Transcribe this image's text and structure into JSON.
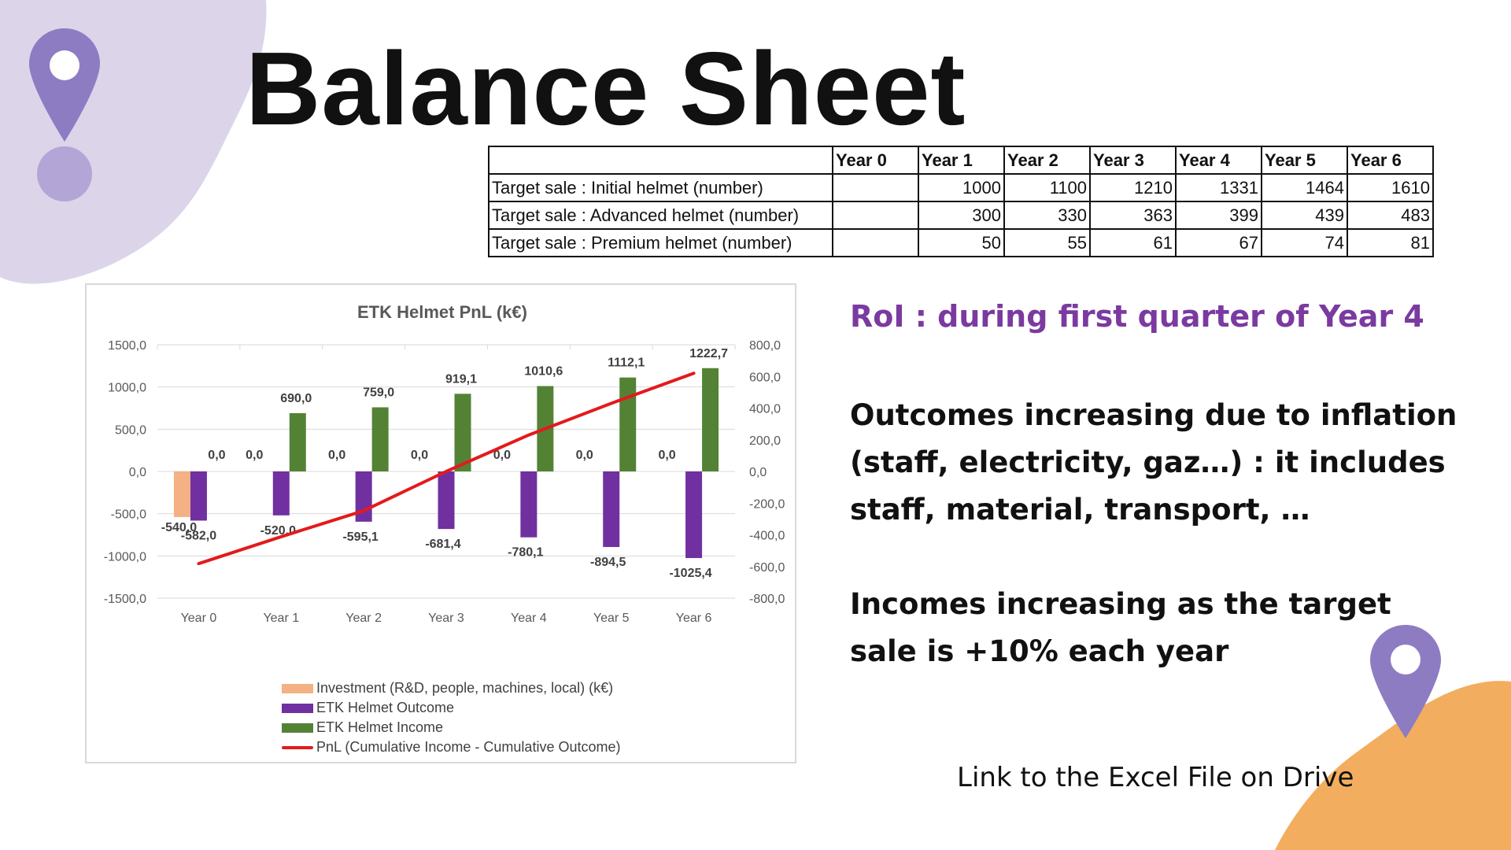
{
  "slide": {
    "title": "Balance Sheet",
    "roi_text": "RoI : during first quarter of Year 4",
    "paragraph_1": "Outcomes increasing due to inflation (staff, electricity, gaz…) : it includes staff, material, transport, …",
    "paragraph_2": "Incomes increasing as the target sale is +10% each year",
    "link_text": "Link to the Excel File on Drive",
    "icons": [
      "map-pin-icon",
      "map-pin-icon"
    ],
    "colors": {
      "accent_purple": "#7b3aa0",
      "blob_lavender": "#dcd5ea",
      "pin_purple": "#8e7cc3",
      "blob_orange": "#f2ae5e"
    }
  },
  "table": {
    "columns": [
      "",
      "Year 0",
      "Year 1",
      "Year 2",
      "Year 3",
      "Year 4",
      "Year 5",
      "Year 6"
    ],
    "rows": [
      {
        "label": "Target sale : Initial helmet (number)",
        "values": [
          "",
          "1000",
          "1100",
          "1210",
          "1331",
          "1464",
          "1610"
        ]
      },
      {
        "label": "Target sale : Advanced helmet (number)",
        "values": [
          "",
          "300",
          "330",
          "363",
          "399",
          "439",
          "483"
        ]
      },
      {
        "label": "Target sale : Premium helmet (number)",
        "values": [
          "",
          "50",
          "55",
          "61",
          "67",
          "74",
          "81"
        ]
      }
    ]
  },
  "chart_data": {
    "type": "bar",
    "title": "ETK Helmet PnL (k€)",
    "categories": [
      "Year 0",
      "Year 1",
      "Year 2",
      "Year 3",
      "Year 4",
      "Year 5",
      "Year 6"
    ],
    "ylim": [
      -1500,
      1500
    ],
    "y_ticks": [
      "1500,0",
      "1000,0",
      "500,0",
      "0,0",
      "-500,0",
      "-1000,0",
      "-1500,0"
    ],
    "y2lim": [
      -800,
      800
    ],
    "y2_ticks": [
      "800,0",
      "600,0",
      "400,0",
      "200,0",
      "0,0",
      "-200,0",
      "-400,0",
      "-600,0",
      "-800,0"
    ],
    "grid": true,
    "legend_position": "bottom",
    "series": [
      {
        "name": "Investment (R&D, people, machines, local)  (k€)",
        "type": "bar",
        "color": "#f4b183",
        "values": [
          -540,
          0,
          0,
          0,
          0,
          0,
          0
        ],
        "labels": [
          "-540,0",
          "0,0",
          "0,0",
          "0,0",
          "0,0",
          "0,0",
          "0,0"
        ]
      },
      {
        "name": "ETK Helmet Outcome",
        "type": "bar",
        "color": "#7030a0",
        "values": [
          -582,
          -520,
          -595.1,
          -681.4,
          -780.1,
          -894.5,
          -1025.4
        ],
        "labels": [
          "-582,0",
          "-520,0",
          "-595,1",
          "-681,4",
          "-780,1",
          "-894,5",
          "-1025,4"
        ]
      },
      {
        "name": "ETK Helmet Income",
        "type": "bar",
        "color": "#548235",
        "values": [
          0,
          690,
          759,
          919.1,
          1010.6,
          1112.1,
          1222.7
        ],
        "labels": [
          "0,0",
          "690,0",
          "759,0",
          "919,1",
          "1010,6",
          "1112,1",
          "1222,7"
        ]
      },
      {
        "name": "PnL (Cumulative Income - Cumulative Outcome)",
        "type": "line",
        "axis": "secondary",
        "color": "#e31a1c",
        "values": [
          -582,
          -412,
          -248,
          0,
          230,
          430,
          620
        ]
      }
    ]
  }
}
